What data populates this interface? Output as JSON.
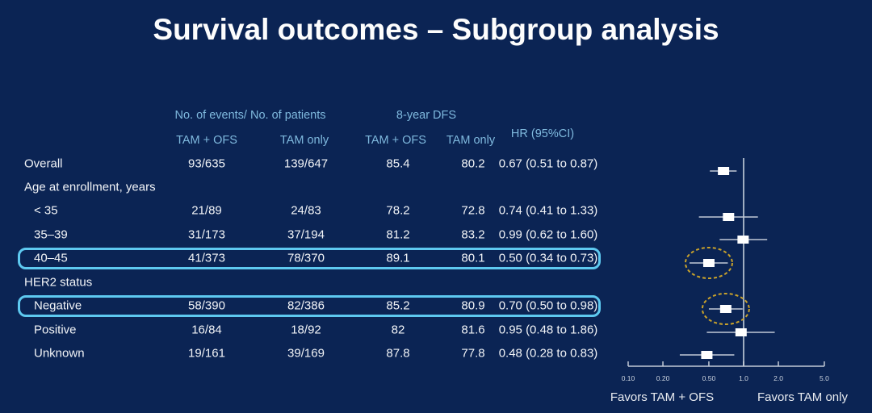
{
  "title": "Survival outcomes – Subgroup analysis",
  "table": {
    "header": {
      "group_events": "No. of events/ No. of patients",
      "group_dfs": "8-year DFS",
      "hr": "HR (95%CI)",
      "sub": [
        "TAM + OFS",
        "TAM only",
        "TAM + OFS",
        "TAM only"
      ]
    },
    "rows": [
      {
        "label": "Overall",
        "indent": false,
        "highlight": false,
        "values": [
          "93/635",
          "139/647",
          "85.4",
          "80.2",
          "0.67 (0.51 to 0.87)"
        ]
      },
      {
        "label": "Age at enrollment, years",
        "section": true
      },
      {
        "label": "< 35",
        "indent": true,
        "highlight": false,
        "values": [
          "21/89",
          "24/83",
          "78.2",
          "72.8",
          "0.74 (0.41 to 1.33)"
        ]
      },
      {
        "label": "35–39",
        "indent": true,
        "highlight": false,
        "values": [
          "31/173",
          "37/194",
          "81.2",
          "83.2",
          "0.99 (0.62 to 1.60)"
        ]
      },
      {
        "label": "40–45",
        "indent": true,
        "highlight": true,
        "values": [
          "41/373",
          "78/370",
          "89.1",
          "80.1",
          "0.50 (0.34 to 0.73)"
        ]
      },
      {
        "label": "HER2 status",
        "section": true
      },
      {
        "label": "Negative",
        "indent": true,
        "highlight": true,
        "values": [
          "58/390",
          "82/386",
          "85.2",
          "80.9",
          "0.70 (0.50 to 0.98)"
        ]
      },
      {
        "label": "Positive",
        "indent": true,
        "highlight": false,
        "values": [
          "16/84",
          "18/92",
          "82",
          "81.6",
          "0.95 (0.48 to 1.86)"
        ]
      },
      {
        "label": "Unknown",
        "indent": true,
        "highlight": false,
        "values": [
          "19/161",
          "39/169",
          "87.8",
          "77.8",
          "0.48 (0.28 to 0.83)"
        ]
      }
    ]
  },
  "chart_data": {
    "type": "forest",
    "scale": "log",
    "ref_line": 1.0,
    "axis_tick_values": [
      0.1,
      0.2,
      0.5,
      1.0,
      2.0,
      5.0
    ],
    "axis_tick_labels": [
      "0.10",
      "0.20",
      "0.50",
      "1.0",
      "2.0",
      "5.0"
    ],
    "xlabel_left": "Favors TAM + OFS",
    "xlabel_right": "Favors TAM only",
    "rows": [
      {
        "label": "Overall",
        "hr": 0.67,
        "ci_low": 0.51,
        "ci_high": 0.87,
        "circled": false
      },
      {
        "label": "< 35",
        "hr": 0.74,
        "ci_low": 0.41,
        "ci_high": 1.33,
        "circled": false
      },
      {
        "label": "35–39",
        "hr": 0.99,
        "ci_low": 0.62,
        "ci_high": 1.6,
        "circled": false
      },
      {
        "label": "40–45",
        "hr": 0.5,
        "ci_low": 0.34,
        "ci_high": 0.73,
        "circled": true
      },
      {
        "label": "Negative",
        "hr": 0.7,
        "ci_low": 0.5,
        "ci_high": 0.98,
        "circled": true
      },
      {
        "label": "Positive",
        "hr": 0.95,
        "ci_low": 0.48,
        "ci_high": 1.86,
        "circled": false
      },
      {
        "label": "Unknown",
        "hr": 0.48,
        "ci_low": 0.28,
        "ci_high": 0.83,
        "circled": false
      }
    ]
  },
  "colors": {
    "background": "#0b2454",
    "header_text": "#7fb9de",
    "body_text": "#f2f4f7",
    "highlight_border": "#5ec9f0",
    "circle_gold": "#c9a22b",
    "marker": "#ffffff",
    "ci_line": "#c2cad6",
    "ref_line": "#9fadc0"
  }
}
